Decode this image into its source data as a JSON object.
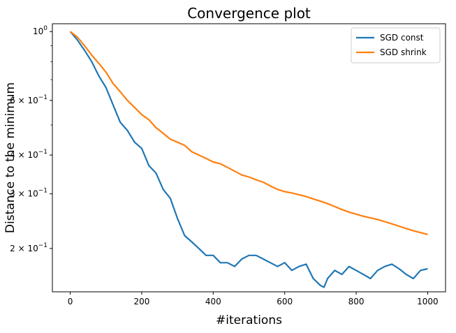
{
  "chart_data": {
    "type": "line",
    "title": "Convergence plot",
    "xlabel": "#iterations",
    "ylabel": "Distance to the minimum",
    "xlim": [
      -50,
      1050
    ],
    "ylim": [
      0.145,
      1.06
    ],
    "yscale": "log",
    "grid": false,
    "legend_position": "top-right",
    "x_ticks": [
      0,
      200,
      400,
      600,
      800,
      1000
    ],
    "x_tick_labels": [
      "0",
      "200",
      "400",
      "600",
      "800",
      "1000"
    ],
    "y_ticks": [
      1.0,
      0.6,
      0.4,
      0.3,
      0.2
    ],
    "y_tick_labels": [
      {
        "mantissa": "",
        "base": "10",
        "exp": "0"
      },
      {
        "mantissa": "6 × ",
        "base": "10",
        "exp": "−1"
      },
      {
        "mantissa": "4 × ",
        "base": "10",
        "exp": "−1"
      },
      {
        "mantissa": "3 × ",
        "base": "10",
        "exp": "−1"
      },
      {
        "mantissa": "2 × ",
        "base": "10",
        "exp": "−1"
      }
    ],
    "y_minor_ticks": [
      0.9,
      0.8,
      0.7,
      0.5
    ],
    "series": [
      {
        "name": "SGD const",
        "color": "#1f77b4",
        "x": [
          0,
          20,
          40,
          60,
          80,
          100,
          120,
          140,
          160,
          180,
          200,
          220,
          240,
          260,
          280,
          300,
          320,
          340,
          360,
          380,
          400,
          420,
          440,
          460,
          480,
          500,
          520,
          540,
          560,
          580,
          600,
          620,
          640,
          660,
          680,
          700,
          710,
          720,
          740,
          760,
          780,
          800,
          820,
          840,
          860,
          880,
          900,
          920,
          940,
          960,
          980,
          1000
        ],
        "y": [
          1.0,
          0.94,
          0.87,
          0.8,
          0.72,
          0.66,
          0.58,
          0.51,
          0.48,
          0.44,
          0.42,
          0.37,
          0.35,
          0.31,
          0.29,
          0.25,
          0.22,
          0.21,
          0.2,
          0.19,
          0.19,
          0.18,
          0.18,
          0.175,
          0.185,
          0.19,
          0.19,
          0.185,
          0.18,
          0.175,
          0.18,
          0.17,
          0.175,
          0.178,
          0.16,
          0.152,
          0.15,
          0.16,
          0.17,
          0.165,
          0.175,
          0.17,
          0.165,
          0.16,
          0.17,
          0.175,
          0.178,
          0.172,
          0.165,
          0.16,
          0.17,
          0.172
        ]
      },
      {
        "name": "SGD shrink",
        "color": "#ff7f0e",
        "x": [
          0,
          20,
          40,
          60,
          80,
          100,
          120,
          140,
          160,
          180,
          200,
          220,
          240,
          260,
          280,
          300,
          320,
          340,
          360,
          380,
          400,
          420,
          440,
          460,
          480,
          500,
          520,
          540,
          560,
          580,
          600,
          620,
          640,
          660,
          680,
          700,
          720,
          740,
          760,
          780,
          800,
          820,
          840,
          860,
          880,
          900,
          920,
          940,
          960,
          980,
          1000
        ],
        "y": [
          1.0,
          0.96,
          0.9,
          0.84,
          0.79,
          0.74,
          0.68,
          0.64,
          0.6,
          0.57,
          0.54,
          0.52,
          0.49,
          0.47,
          0.45,
          0.44,
          0.43,
          0.41,
          0.4,
          0.39,
          0.38,
          0.375,
          0.365,
          0.355,
          0.345,
          0.34,
          0.333,
          0.327,
          0.318,
          0.31,
          0.305,
          0.302,
          0.298,
          0.294,
          0.289,
          0.284,
          0.279,
          0.273,
          0.267,
          0.262,
          0.258,
          0.254,
          0.251,
          0.248,
          0.244,
          0.24,
          0.236,
          0.232,
          0.228,
          0.225,
          0.222
        ]
      }
    ]
  }
}
